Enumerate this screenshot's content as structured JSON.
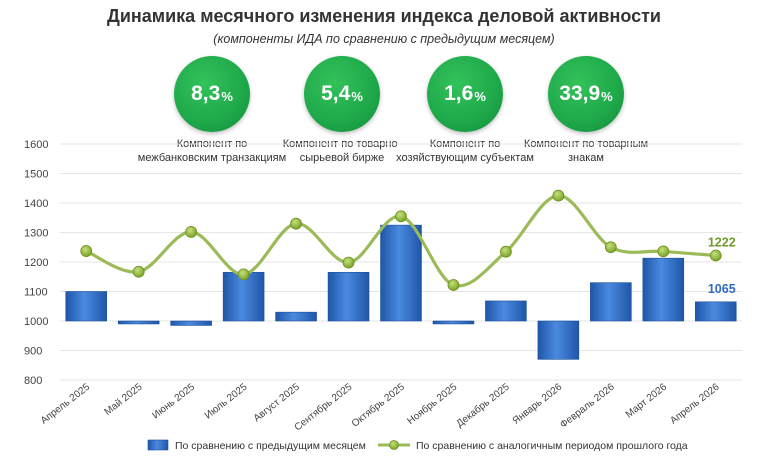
{
  "header": {
    "title": "Динамика месячного изменения индекса деловой активности",
    "subtitle": "(компоненты ИДА по сравнению с предыдущим месяцем)"
  },
  "kpis": [
    {
      "value": "8,3",
      "unit": "%",
      "label": "Компонент по межбанковским транзакциям"
    },
    {
      "value": "5,4",
      "unit": "%",
      "label": "Компонент по товарно-сырьевой бирже"
    },
    {
      "value": "1,6",
      "unit": "%",
      "label": "Компонент по хозяйствующим субъектам"
    },
    {
      "value": "33,9",
      "unit": "%",
      "label": "Компонент по товарным знакам"
    }
  ],
  "colors": {
    "bar": "#2e6cc2",
    "line": "#9bbb59",
    "marker": "#8db832",
    "last_line_label": "#6e9a2e",
    "last_bar_label": "#2e6cc2",
    "kpi": "#1ea84a"
  },
  "chart_data": {
    "type": "bar",
    "categories": [
      "Апрель 2025",
      "Май 2025",
      "Июнь 2025",
      "Июль 2025",
      "Август 2025",
      "Сентябрь 2025",
      "Октябрь 2025",
      "Ноябрь 2025",
      "Декабрь 2025",
      "Январь 2026",
      "Февраль 2026",
      "Март 2026",
      "Апрель 2026"
    ],
    "baseline": 1000,
    "ylim": [
      800,
      1600
    ],
    "yticks": [
      800,
      900,
      1000,
      1100,
      1200,
      1300,
      1400,
      1500,
      1600
    ],
    "grid": true,
    "legend_position": "bottom",
    "series": [
      {
        "name": "По сравнению с предыдущим месяцем",
        "type": "bar",
        "values": [
          1100,
          990,
          985,
          1165,
          1030,
          1165,
          1325,
          990,
          1068,
          870,
          1130,
          1213,
          1065
        ]
      },
      {
        "name": "По сравнению с аналогичным периодом прошлого года",
        "type": "line",
        "values": [
          1237,
          1167,
          1302,
          1158,
          1330,
          1198,
          1355,
          1122,
          1235,
          1425,
          1250,
          1236,
          1222
        ]
      }
    ],
    "data_labels": [
      {
        "series": 0,
        "index": 12,
        "text": "1065"
      },
      {
        "series": 1,
        "index": 12,
        "text": "1222"
      }
    ]
  }
}
